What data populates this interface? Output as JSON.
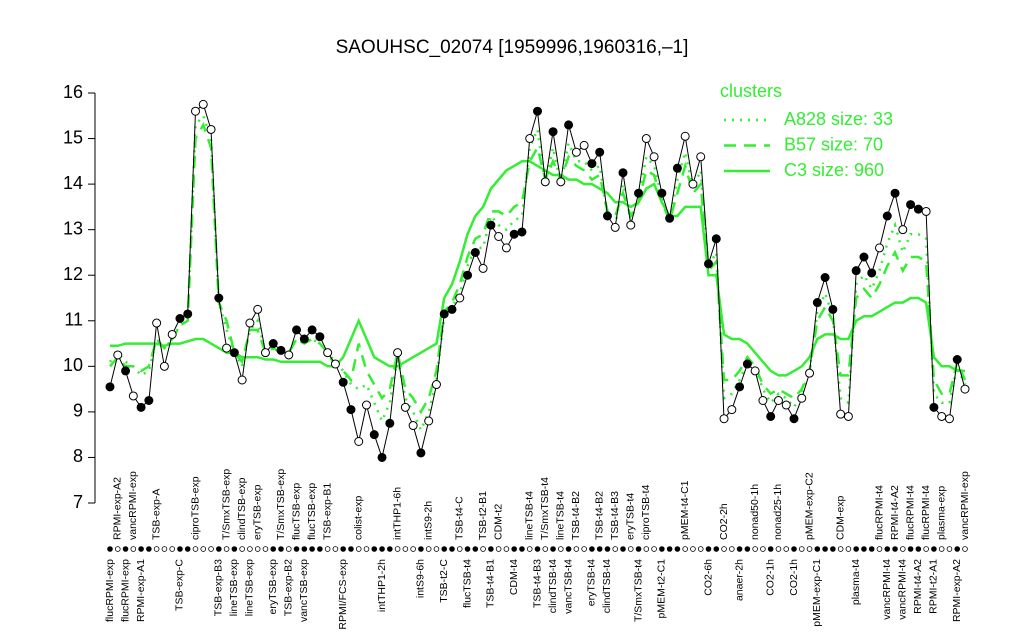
{
  "chart_data": {
    "type": "line",
    "title": "SAOUHSC_02074 [1959996,1960316,–1]",
    "ylim": [
      7,
      16
    ],
    "yticks": [
      7,
      8,
      9,
      10,
      11,
      12,
      13,
      14,
      15,
      16
    ],
    "color": "#000000",
    "legend": {
      "title": "clusters",
      "position": "topright",
      "color": "#33ee33"
    },
    "values": [
      9.55,
      10.25,
      9.9,
      9.35,
      9.1,
      9.25,
      10.95,
      10.0,
      10.7,
      11.05,
      11.15,
      15.6,
      15.75,
      15.2,
      11.5,
      10.4,
      10.3,
      9.7,
      10.95,
      11.25,
      10.3,
      10.5,
      10.35,
      10.25,
      10.8,
      10.6,
      10.8,
      10.65,
      10.3,
      10.05,
      9.65,
      9.05,
      8.35,
      9.15,
      8.5,
      8.0,
      8.75,
      10.3,
      9.1,
      8.7,
      8.1,
      8.8,
      9.6,
      11.15,
      11.25,
      11.5,
      12.0,
      12.5,
      12.15,
      13.1,
      12.85,
      12.6,
      12.9,
      12.95,
      15.0,
      15.6,
      14.05,
      15.15,
      14.05,
      15.3,
      14.7,
      14.85,
      14.45,
      14.7,
      13.3,
      13.05,
      14.25,
      13.1,
      13.8,
      15.0,
      14.6,
      13.8,
      13.25,
      14.35,
      15.05,
      14.0,
      14.6,
      12.25,
      12.8,
      8.85,
      9.05,
      9.55,
      10.05,
      9.9,
      9.25,
      8.9,
      9.25,
      9.15,
      8.85,
      9.3,
      9.85,
      11.4,
      11.95,
      11.25,
      8.95,
      8.9,
      12.1,
      12.4,
      12.05,
      12.6,
      13.3,
      13.8,
      13.0,
      13.55,
      13.45,
      13.4,
      9.1,
      8.9,
      8.85,
      10.15,
      9.5
    ],
    "marker_filled": [
      true,
      false,
      true,
      false,
      true,
      true,
      false,
      false,
      false,
      true,
      true,
      false,
      false,
      false,
      true,
      false,
      true,
      false,
      false,
      false,
      false,
      true,
      true,
      false,
      true,
      true,
      true,
      true,
      false,
      false,
      true,
      true,
      false,
      false,
      true,
      true,
      true,
      false,
      false,
      false,
      true,
      false,
      false,
      true,
      true,
      false,
      true,
      true,
      false,
      true,
      false,
      false,
      true,
      true,
      false,
      true,
      false,
      true,
      false,
      true,
      false,
      false,
      true,
      true,
      true,
      false,
      true,
      false,
      true,
      false,
      false,
      true,
      true,
      true,
      false,
      false,
      false,
      true,
      true,
      false,
      false,
      true,
      true,
      false,
      false,
      true,
      false,
      false,
      true,
      false,
      false,
      true,
      true,
      true,
      false,
      false,
      true,
      true,
      true,
      false,
      true,
      true,
      false,
      true,
      true,
      false,
      true,
      false,
      false,
      true,
      false
    ],
    "bottom_labels": [
      "flucRPMI-exp",
      null,
      "flucRPMI-exp",
      null,
      "RPMI-exp-A1",
      null,
      null,
      null,
      null,
      "TSB-exp-C",
      null,
      null,
      null,
      null,
      "TSB-exp-B3",
      null,
      "lineTSB-exp",
      null,
      "lineTSB-exp",
      null,
      null,
      "eryTSB-exp",
      null,
      "TSB-exp-B2",
      null,
      "vancTSB-exp",
      null,
      null,
      null,
      null,
      "RPMI/FCS-exp",
      null,
      null,
      null,
      null,
      "intTHP1-2h",
      null,
      null,
      null,
      null,
      "intS9-6h",
      null,
      null,
      "TSB-t2-C",
      null,
      null,
      "flucTSB-t4",
      null,
      null,
      "TSB-t4-B1",
      null,
      null,
      "CDM-t4",
      null,
      null,
      "TSB-t4-B3",
      null,
      "clindTSB-t4",
      null,
      "vancTSB-t4",
      null,
      null,
      "eryTSB-t4",
      null,
      "clindTSB-t4",
      null,
      null,
      null,
      "T/SmxTSB-t4",
      null,
      null,
      "pMEM-t2-C1",
      null,
      null,
      null,
      null,
      null,
      "CO2-6h",
      null,
      null,
      null,
      "anaer-2h",
      null,
      null,
      null,
      "CO2-1h",
      null,
      null,
      "CO2-1h",
      null,
      null,
      "pMEM-exp-C1",
      null,
      null,
      null,
      null,
      "plasma-t4",
      null,
      null,
      null,
      "vancRPMI-t4",
      null,
      "vancRPMI-t4",
      null,
      "RPMI-t4-A2",
      null,
      "RPMI-t2-A1",
      null,
      null,
      "RPMI-exp-A2",
      null
    ],
    "top_labels": [
      null,
      "RPMI-exp-A2",
      null,
      "vancRPMI-exp",
      null,
      null,
      "TSB-exp-A",
      null,
      null,
      null,
      null,
      "ciproTSB-exp",
      null,
      null,
      null,
      "T/SmxTSB-exp",
      null,
      "clindTSB-exp",
      null,
      "eryTSB-exp",
      null,
      null,
      "T/SmxTSB-exp",
      null,
      "flucTSB-exp",
      null,
      "flucTSB-exp",
      null,
      "TSB-exp-B1",
      null,
      null,
      null,
      "colist-exp",
      null,
      null,
      null,
      null,
      "intTHP1-6h",
      null,
      null,
      null,
      "intS9-2h",
      null,
      null,
      null,
      "TSB-t4-C",
      null,
      null,
      "TSB-t2-B1",
      null,
      "CDM-t2",
      null,
      null,
      null,
      "lineTSB-t4",
      null,
      "T/SmxTSB-t4",
      null,
      "lineTSB-t4",
      null,
      "TSB-t4-B2",
      null,
      null,
      "TSB-t4-B2",
      null,
      "TSB-t4-B3",
      null,
      "eryTSB-t4",
      null,
      "ciproTSB-t4",
      null,
      null,
      null,
      null,
      "pMEM-t4-C1",
      null,
      null,
      null,
      null,
      "CO2-2h",
      null,
      null,
      null,
      "nonad50-1h",
      null,
      null,
      "nonad25-1h",
      null,
      null,
      null,
      "pMEM-exp-C2",
      null,
      null,
      null,
      "CDM-exp",
      null,
      null,
      null,
      null,
      "flucRPMI-t4",
      null,
      "RPMI-t4-A2",
      null,
      "flucRPMI-t4",
      null,
      "flucRPMI-t4",
      null,
      "plasma-exp",
      null,
      null,
      "vancRPMI-exp"
    ],
    "series": [
      {
        "name": "A828 size: 33",
        "color": "#33ee33",
        "linestyle": "dotted",
        "values": [
          10.1,
          10.3,
          10.1,
          10.0,
          9.8,
          9.9,
          10.6,
          10.4,
          10.6,
          10.9,
          11.0,
          15.3,
          15.5,
          15.0,
          11.4,
          10.8,
          10.3,
          10.0,
          10.8,
          11.0,
          10.3,
          10.4,
          10.3,
          10.3,
          10.6,
          10.5,
          10.6,
          10.5,
          10.3,
          10.1,
          9.9,
          9.6,
          9.5,
          9.6,
          9.2,
          8.8,
          9.2,
          10.2,
          9.3,
          9.0,
          8.6,
          9.0,
          9.7,
          11.1,
          11.3,
          11.6,
          12.2,
          12.6,
          12.6,
          13.3,
          13.1,
          13.0,
          13.2,
          13.3,
          14.8,
          15.2,
          14.0,
          14.8,
          14.0,
          14.9,
          14.5,
          14.5,
          14.3,
          14.4,
          13.3,
          13.1,
          14.0,
          13.2,
          13.7,
          14.6,
          14.4,
          13.7,
          13.2,
          14.1,
          14.7,
          13.9,
          14.3,
          12.2,
          12.5,
          9.3,
          9.4,
          9.7,
          10.1,
          10.0,
          9.5,
          9.2,
          9.4,
          9.3,
          9.1,
          9.4,
          9.9,
          11.2,
          11.6,
          11.1,
          9.3,
          9.2,
          11.8,
          12.0,
          11.7,
          12.1,
          12.7,
          13.1,
          12.5,
          12.9,
          12.9,
          12.8,
          9.4,
          9.2,
          9.2,
          10.0,
          9.6
        ]
      },
      {
        "name": "B57 size: 70",
        "color": "#33ee33",
        "linestyle": "dashed",
        "values": [
          10.0,
          10.2,
          10.0,
          10.0,
          9.9,
          10.0,
          10.6,
          10.4,
          10.6,
          10.9,
          11.0,
          15.0,
          15.3,
          14.8,
          11.4,
          11.0,
          10.3,
          10.1,
          10.8,
          10.8,
          10.3,
          10.4,
          10.3,
          10.3,
          10.6,
          10.5,
          10.6,
          10.5,
          10.3,
          10.0,
          9.9,
          9.7,
          10.5,
          9.9,
          9.6,
          9.3,
          9.5,
          10.3,
          9.5,
          9.3,
          9.0,
          9.3,
          9.9,
          11.2,
          11.4,
          11.8,
          12.4,
          12.8,
          12.9,
          13.4,
          13.4,
          13.3,
          13.5,
          13.6,
          14.5,
          14.8,
          14.1,
          14.5,
          14.1,
          14.6,
          14.4,
          14.3,
          14.1,
          14.2,
          13.4,
          13.3,
          13.8,
          13.3,
          13.6,
          14.3,
          14.2,
          13.6,
          13.2,
          13.8,
          14.4,
          13.8,
          14.0,
          12.1,
          12.3,
          9.7,
          9.7,
          9.9,
          10.2,
          10.0,
          9.6,
          9.4,
          9.5,
          9.4,
          9.3,
          9.5,
          9.9,
          11.0,
          11.3,
          11.0,
          9.8,
          9.8,
          11.5,
          11.7,
          11.5,
          11.8,
          12.2,
          12.5,
          12.1,
          12.4,
          12.4,
          12.3,
          9.7,
          9.4,
          9.4,
          10.1,
          9.7
        ]
      },
      {
        "name": "C3 size: 960",
        "color": "#33ee33",
        "linestyle": "solid",
        "values": [
          10.45,
          10.45,
          10.5,
          10.5,
          10.5,
          10.5,
          10.5,
          10.45,
          10.5,
          10.5,
          10.55,
          10.6,
          10.6,
          10.5,
          10.4,
          10.3,
          10.3,
          10.2,
          10.2,
          10.2,
          10.15,
          10.15,
          10.1,
          10.1,
          10.1,
          10.1,
          10.1,
          10.1,
          10.0,
          10.0,
          10.2,
          10.6,
          11.0,
          10.6,
          10.2,
          10.1,
          10.0,
          10.0,
          10.1,
          10.2,
          10.3,
          10.4,
          10.5,
          11.5,
          11.8,
          12.3,
          12.9,
          13.3,
          13.5,
          13.9,
          14.1,
          14.3,
          14.4,
          14.5,
          14.5,
          14.4,
          14.3,
          14.2,
          14.2,
          14.1,
          14.1,
          14.0,
          14.0,
          13.9,
          13.8,
          13.6,
          13.6,
          13.5,
          13.6,
          13.9,
          14.0,
          13.6,
          13.3,
          13.3,
          13.5,
          13.5,
          13.5,
          12.0,
          12.0,
          10.7,
          10.6,
          10.6,
          10.5,
          10.3,
          10.1,
          9.9,
          9.8,
          9.8,
          9.9,
          10.0,
          10.2,
          10.6,
          10.7,
          10.7,
          10.6,
          10.6,
          11.0,
          11.1,
          11.1,
          11.2,
          11.3,
          11.4,
          11.4,
          11.5,
          11.5,
          11.4,
          10.2,
          10.0,
          10.0,
          9.9,
          9.9
        ]
      }
    ]
  }
}
